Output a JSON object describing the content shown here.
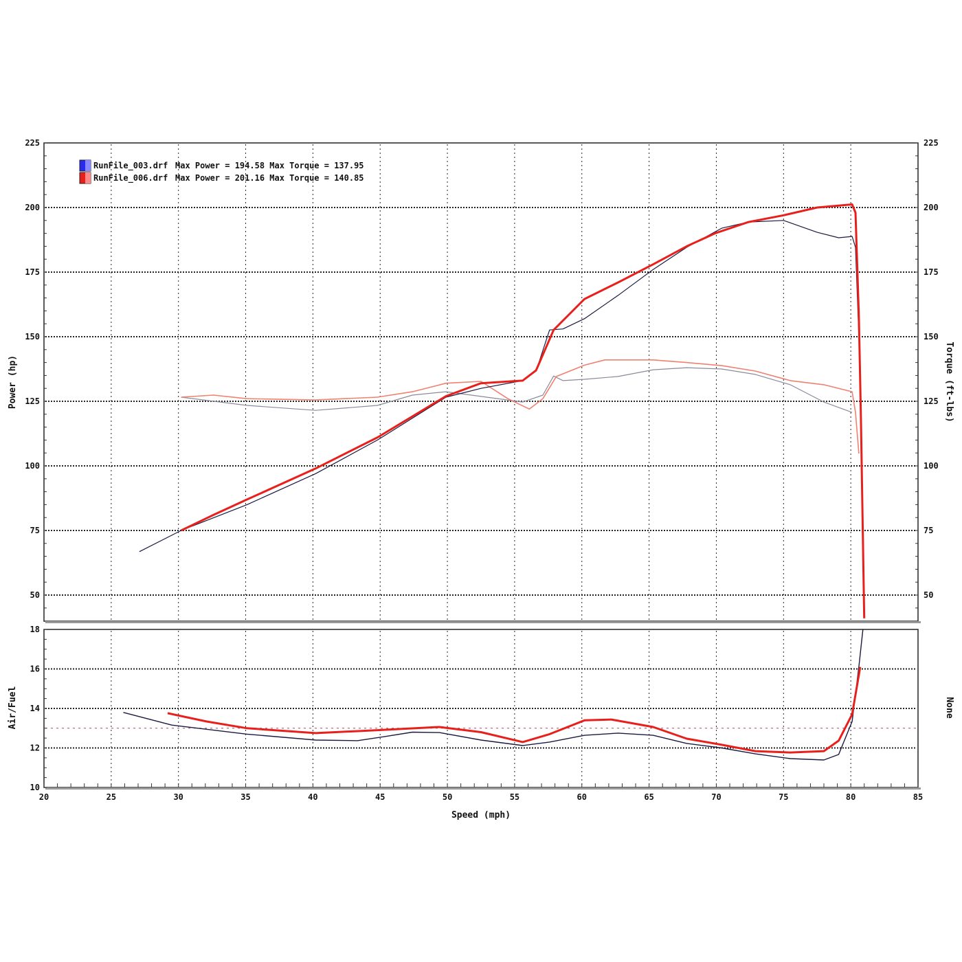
{
  "chart_data": [
    {
      "type": "line",
      "panel": "power-torque",
      "xlabel": "Speed (mph)",
      "ylabel": "Power (hp)",
      "y2label": "Torque (ft-lbs)",
      "xlim": [
        20,
        85
      ],
      "ylim": [
        40,
        225
      ],
      "xticks": [
        20,
        25,
        30,
        35,
        40,
        45,
        50,
        55,
        60,
        65,
        70,
        75,
        80,
        85
      ],
      "yticks": [
        50,
        75,
        100,
        125,
        150,
        175,
        200,
        225
      ],
      "grid": true,
      "legend_position": "top-left",
      "legend": [
        {
          "file": "RunFile_003.drf",
          "text": "Max Power = 194.58 Max Torque = 137.95",
          "color": "#2a2aee"
        },
        {
          "file": "RunFile_006.drf",
          "text": "Max Power = 201.16 Max Torque = 140.85",
          "color": "#e8201c"
        }
      ],
      "series": [
        {
          "name": "RunFile_006.drf",
          "measure": "power",
          "color": "#e8201c",
          "x": [
            30.2,
            32.6,
            35.1,
            40.2,
            44.8,
            49.9,
            52.5,
            55.6,
            56.6,
            57.9,
            60.2,
            62.7,
            65.3,
            67.8,
            69.9,
            72.4,
            75.0,
            77.5,
            80.1,
            80.35,
            80.6,
            80.75,
            81.0
          ],
          "y": [
            75,
            81,
            87,
            99,
            111,
            127,
            132,
            133,
            137,
            152.6,
            164.6,
            171,
            178,
            185,
            190,
            194.4,
            197,
            200,
            201.2,
            198,
            158,
            120,
            41
          ]
        },
        {
          "name": "RunFile_003.drf",
          "measure": "power",
          "color": "#1a1a40",
          "x": [
            27.1,
            30.2,
            35.1,
            40.2,
            44.8,
            49.9,
            52.5,
            55.6,
            56.6,
            57.6,
            58.6,
            60.2,
            62.7,
            65.3,
            67.8,
            70.4,
            72.4,
            75.0,
            77.5,
            79.1,
            80.1,
            80.35,
            80.6
          ],
          "y": [
            66.8,
            75,
            85,
            97,
            110,
            126.6,
            130,
            133,
            136.7,
            152.6,
            153,
            157,
            166,
            176,
            184.6,
            192,
            194.4,
            195,
            190.4,
            188.3,
            188.8,
            184.6,
            150
          ]
        },
        {
          "name": "RunFile_006.drf",
          "measure": "torque",
          "color": "#f08070",
          "x": [
            30.2,
            32.6,
            35.1,
            40.2,
            44.8,
            47.4,
            49.9,
            52.5,
            54.5,
            56.1,
            57.1,
            58.1,
            60.2,
            61.7,
            65.3,
            67.8,
            70.4,
            72.9,
            75.5,
            78.0,
            80.1,
            80.35,
            80.6
          ],
          "y": [
            126.6,
            127.4,
            126,
            125.5,
            126.6,
            128.7,
            132,
            132.7,
            126,
            122,
            126,
            134.6,
            139,
            141,
            141,
            140,
            138.8,
            136.7,
            133,
            131.4,
            128.7,
            120.7,
            104.8
          ]
        },
        {
          "name": "RunFile_003.drf",
          "measure": "torque",
          "color": "#8a8a9a",
          "x": [
            30.2,
            35.1,
            40.2,
            44.8,
            47.4,
            49.9,
            52.5,
            55.6,
            57.1,
            57.9,
            58.6,
            60.2,
            62.7,
            65.3,
            67.8,
            70.4,
            72.9,
            75.5,
            78.0,
            80.1
          ],
          "y": [
            126.6,
            123.4,
            121.5,
            123.4,
            127.4,
            128.7,
            126.9,
            124.7,
            127.4,
            134.8,
            133,
            133.5,
            134.6,
            137.2,
            138,
            137.5,
            135.4,
            131.4,
            124.7,
            120.7
          ]
        }
      ]
    },
    {
      "type": "line",
      "panel": "air-fuel",
      "xlabel": "Speed (mph)",
      "ylabel": "Air/Fuel",
      "y2label": "None",
      "xlim": [
        20,
        85
      ],
      "ylim": [
        10,
        18
      ],
      "xticks": [
        20,
        25,
        30,
        35,
        40,
        45,
        50,
        55,
        60,
        65,
        70,
        75,
        80,
        85
      ],
      "yticks": [
        10,
        12,
        14,
        16,
        18
      ],
      "reference_line": 13.0,
      "grid": true,
      "series": [
        {
          "name": "RunFile_006.drf",
          "color": "#e8201c",
          "x": [
            29.2,
            32.1,
            35.1,
            40.2,
            44.8,
            49.4,
            52.5,
            55.6,
            57.6,
            60.2,
            62.2,
            65.3,
            67.8,
            70.4,
            72.9,
            75.5,
            78.0,
            79.1,
            80.1,
            80.7
          ],
          "y": [
            13.76,
            13.34,
            13.0,
            12.75,
            12.9,
            13.06,
            12.8,
            12.3,
            12.7,
            13.4,
            13.44,
            13.06,
            12.47,
            12.16,
            11.84,
            11.77,
            11.84,
            12.37,
            13.7,
            16.1
          ]
        },
        {
          "name": "RunFile_003.drf",
          "color": "#1a1a40",
          "x": [
            25.9,
            29.5,
            35.1,
            40.2,
            43.3,
            45.3,
            47.4,
            49.4,
            52.5,
            55.6,
            57.6,
            60.2,
            62.7,
            65.3,
            67.8,
            70.4,
            72.9,
            75.5,
            78.0,
            79.1,
            80.1,
            80.6,
            80.9
          ],
          "y": [
            13.8,
            13.16,
            12.7,
            12.4,
            12.37,
            12.57,
            12.8,
            12.78,
            12.4,
            12.12,
            12.3,
            12.64,
            12.75,
            12.64,
            12.23,
            12.0,
            11.7,
            11.46,
            11.39,
            11.67,
            13.34,
            16.1,
            18
          ]
        }
      ]
    }
  ]
}
